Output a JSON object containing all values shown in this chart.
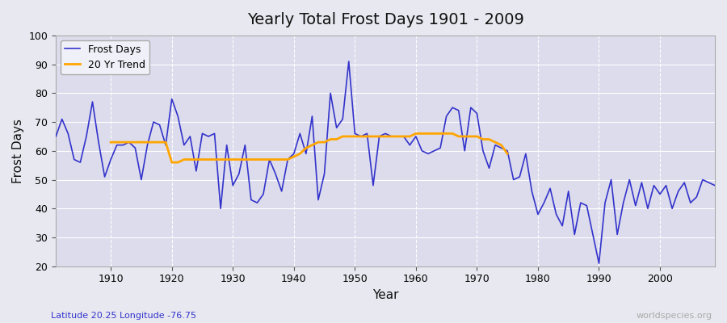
{
  "title": "Yearly Total Frost Days 1901 - 2009",
  "xlabel": "Year",
  "ylabel": "Frost Days",
  "subtitle": "Latitude 20.25 Longitude -76.75",
  "watermark": "worldspecies.org",
  "ylim": [
    20,
    100
  ],
  "yticks": [
    20,
    30,
    40,
    50,
    60,
    70,
    80,
    90,
    100
  ],
  "frost_days_color": "#3333cc",
  "trend_color": "#ffa500",
  "bg_color": "#e8e8f0",
  "plot_bg_color": "#dcdcec",
  "years": [
    1901,
    1902,
    1903,
    1904,
    1905,
    1906,
    1907,
    1908,
    1909,
    1910,
    1911,
    1912,
    1913,
    1914,
    1915,
    1916,
    1917,
    1918,
    1919,
    1920,
    1921,
    1922,
    1923,
    1924,
    1925,
    1926,
    1927,
    1928,
    1929,
    1930,
    1931,
    1932,
    1933,
    1934,
    1935,
    1936,
    1937,
    1938,
    1939,
    1940,
    1941,
    1942,
    1943,
    1944,
    1945,
    1946,
    1947,
    1948,
    1949,
    1950,
    1951,
    1952,
    1953,
    1954,
    1955,
    1956,
    1957,
    1958,
    1959,
    1960,
    1961,
    1962,
    1963,
    1964,
    1965,
    1966,
    1967,
    1968,
    1969,
    1970,
    1971,
    1972,
    1973,
    1974,
    1975,
    1976,
    1977,
    1978,
    1979,
    1980,
    1981,
    1982,
    1983,
    1984,
    1985,
    1986,
    1987,
    1988,
    1989,
    1990,
    1991,
    1992,
    1993,
    1994,
    1995,
    1996,
    1997,
    1998,
    1999,
    2000,
    2001,
    2002,
    2003,
    2004,
    2005,
    2006,
    2007,
    2008,
    2009
  ],
  "frost_days": [
    65,
    71,
    66,
    57,
    56,
    65,
    77,
    63,
    51,
    57,
    62,
    62,
    63,
    61,
    50,
    62,
    70,
    69,
    62,
    78,
    72,
    62,
    65,
    53,
    66,
    65,
    66,
    40,
    62,
    48,
    52,
    62,
    43,
    42,
    45,
    57,
    52,
    46,
    57,
    59,
    66,
    59,
    72,
    43,
    52,
    80,
    68,
    71,
    91,
    66,
    65,
    66,
    48,
    65,
    66,
    65,
    65,
    65,
    62,
    65,
    60,
    59,
    60,
    61,
    72,
    75,
    74,
    60,
    75,
    73,
    60,
    54,
    62,
    61,
    60,
    50,
    51,
    59,
    46,
    38,
    42,
    47,
    38,
    34,
    46,
    31,
    42,
    41,
    31,
    21,
    42,
    50,
    31,
    42,
    50,
    41,
    49,
    40,
    48,
    45,
    48,
    40,
    46,
    49,
    42,
    44,
    50,
    49,
    48
  ],
  "trend_years": [
    1910,
    1911,
    1912,
    1913,
    1914,
    1915,
    1916,
    1917,
    1918,
    1919,
    1920,
    1921,
    1922,
    1923,
    1924,
    1925,
    1926,
    1927,
    1928,
    1929,
    1930,
    1931,
    1932,
    1933,
    1934,
    1935,
    1936,
    1937,
    1938,
    1939,
    1940,
    1941,
    1942,
    1943,
    1944,
    1945,
    1946,
    1947,
    1948,
    1949,
    1950,
    1951,
    1952,
    1953,
    1954,
    1955,
    1956,
    1957,
    1958,
    1959,
    1960,
    1961,
    1962,
    1963,
    1964,
    1965,
    1966,
    1967,
    1968,
    1969,
    1970,
    1971,
    1972,
    1973,
    1974,
    1975
  ],
  "trend_values": [
    63,
    63,
    63,
    63,
    63,
    63,
    63,
    63,
    63,
    63,
    56,
    56,
    57,
    57,
    57,
    57,
    57,
    57,
    57,
    57,
    57,
    57,
    57,
    57,
    57,
    57,
    57,
    57,
    57,
    57,
    58,
    59,
    61,
    62,
    63,
    63,
    64,
    64,
    65,
    65,
    65,
    65,
    65,
    65,
    65,
    65,
    65,
    65,
    65,
    65,
    66,
    66,
    66,
    66,
    66,
    66,
    66,
    65,
    65,
    65,
    65,
    64,
    64,
    63,
    62,
    59
  ]
}
